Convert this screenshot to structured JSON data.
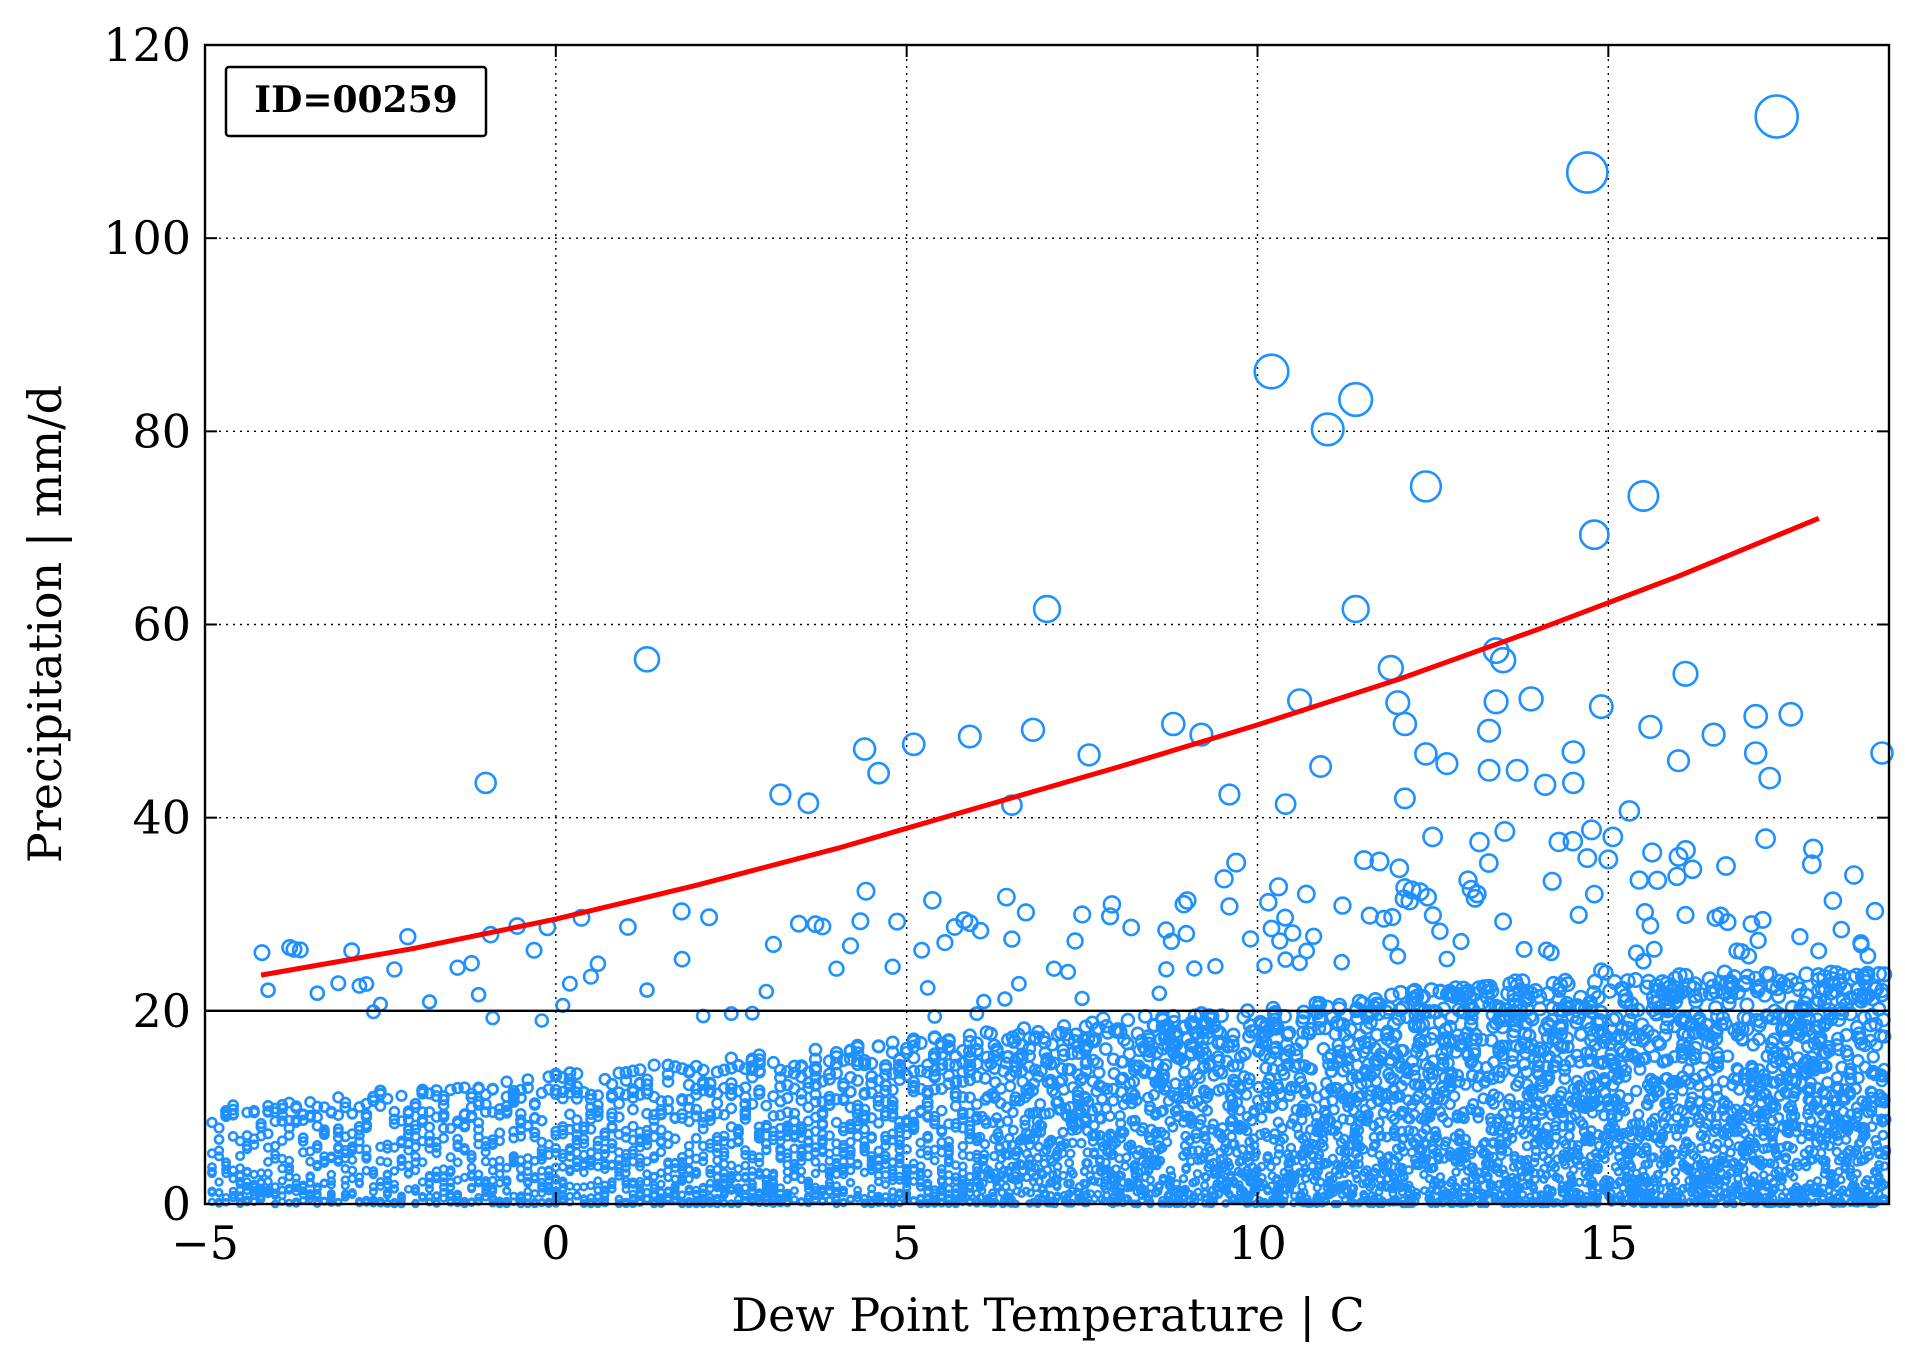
{
  "chart_data": {
    "type": "scatter",
    "title": "",
    "xlabel": "Dew Point Temperature | C",
    "ylabel": "Precipitation | mm/d",
    "xlim": [
      -5,
      19
    ],
    "ylim": [
      0,
      120
    ],
    "xticks": [
      -5,
      0,
      5,
      10,
      15
    ],
    "xtick_labels": [
      "−5",
      "0",
      "5",
      "10",
      "15"
    ],
    "yticks": [
      0,
      20,
      40,
      60,
      80,
      100,
      120
    ],
    "ytick_labels": [
      "0",
      "20",
      "40",
      "60",
      "80",
      "100",
      "120"
    ],
    "grid": true,
    "annotation": "ID=00259",
    "reference_line": {
      "y": 20,
      "color": "#000000"
    },
    "colors": {
      "points": "#1e90ff",
      "fit": "#ff0000"
    },
    "fit_curve": {
      "name": "",
      "x": [
        -4.2,
        -2,
        0,
        2,
        4,
        6,
        8,
        10,
        12,
        14,
        16,
        18
      ],
      "y": [
        23.7,
        26.5,
        29.5,
        33.0,
        36.8,
        41.0,
        45.2,
        49.6,
        54.3,
        59.5,
        65.0,
        71.0
      ]
    },
    "outliers": [
      {
        "x": 17.4,
        "y": 112.6
      },
      {
        "x": 14.7,
        "y": 106.8
      },
      {
        "x": 10.2,
        "y": 86.2
      },
      {
        "x": 11.4,
        "y": 83.3
      },
      {
        "x": 11.0,
        "y": 80.2
      },
      {
        "x": 12.4,
        "y": 74.3
      },
      {
        "x": 15.5,
        "y": 73.3
      },
      {
        "x": 14.8,
        "y": 69.3
      },
      {
        "x": 7.0,
        "y": 61.6
      },
      {
        "x": 11.4,
        "y": 61.6
      },
      {
        "x": 1.3,
        "y": 56.4
      },
      {
        "x": 13.4,
        "y": 57.3
      },
      {
        "x": 13.5,
        "y": 56.3
      },
      {
        "x": 11.9,
        "y": 55.5
      },
      {
        "x": 16.1,
        "y": 54.9
      },
      {
        "x": 10.6,
        "y": 52.1
      },
      {
        "x": 13.4,
        "y": 52.0
      },
      {
        "x": 13.9,
        "y": 52.3
      },
      {
        "x": 12.0,
        "y": 51.9
      },
      {
        "x": 14.9,
        "y": 51.5
      },
      {
        "x": 17.1,
        "y": 50.5
      },
      {
        "x": 17.6,
        "y": 50.7
      },
      {
        "x": 6.8,
        "y": 49.1
      },
      {
        "x": 8.8,
        "y": 49.7
      },
      {
        "x": 9.2,
        "y": 48.6
      },
      {
        "x": 5.9,
        "y": 48.4
      },
      {
        "x": 12.1,
        "y": 49.7
      },
      {
        "x": 13.3,
        "y": 49.0
      },
      {
        "x": 15.6,
        "y": 49.4
      },
      {
        "x": 16.5,
        "y": 48.6
      },
      {
        "x": 4.4,
        "y": 47.1
      },
      {
        "x": 5.1,
        "y": 47.6
      },
      {
        "x": 7.6,
        "y": 46.5
      },
      {
        "x": 12.4,
        "y": 46.6
      },
      {
        "x": 14.5,
        "y": 46.8
      },
      {
        "x": 17.1,
        "y": 46.7
      },
      {
        "x": 18.9,
        "y": 46.7
      },
      {
        "x": 4.6,
        "y": 44.6
      },
      {
        "x": 10.9,
        "y": 45.3
      },
      {
        "x": 12.7,
        "y": 45.6
      },
      {
        "x": 13.3,
        "y": 44.9
      },
      {
        "x": 13.7,
        "y": 44.9
      },
      {
        "x": 16.0,
        "y": 45.9
      },
      {
        "x": 17.3,
        "y": 44.1
      },
      {
        "x": -1.0,
        "y": 43.6
      },
      {
        "x": 3.2,
        "y": 42.4
      },
      {
        "x": 3.6,
        "y": 41.5
      },
      {
        "x": 6.5,
        "y": 41.3
      },
      {
        "x": 9.6,
        "y": 42.4
      },
      {
        "x": 10.4,
        "y": 41.4
      },
      {
        "x": 12.1,
        "y": 42.0
      },
      {
        "x": 14.1,
        "y": 43.4
      },
      {
        "x": 14.5,
        "y": 43.6
      },
      {
        "x": 15.3,
        "y": 40.7
      }
    ],
    "bulk_points_note": "Dense cloud of several thousand points between y=0 and y=40 across x from -5 to 19"
  }
}
